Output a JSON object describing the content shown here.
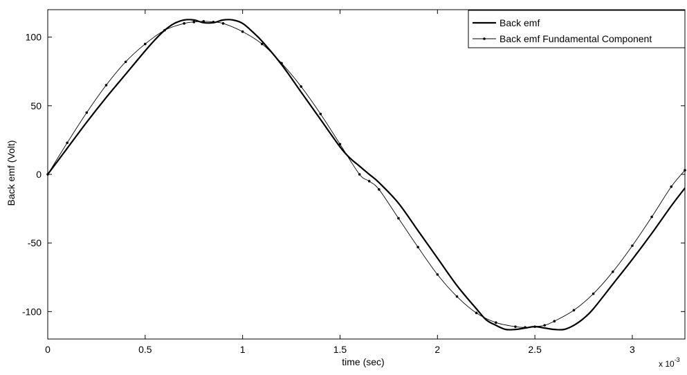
{
  "chart_data": {
    "type": "line",
    "title": "",
    "xlabel": "time (sec)",
    "ylabel": "Back emf (Volt)",
    "x_multiplier_base": "x 10",
    "x_multiplier_exp": "-3",
    "xlim": [
      0,
      3.27
    ],
    "ylim": [
      -120,
      120
    ],
    "xticks": [
      0,
      0.5,
      1,
      1.5,
      2,
      2.5,
      3
    ],
    "xtick_labels": [
      "0",
      "0.5",
      "1",
      "1.5",
      "2",
      "2.5",
      "3"
    ],
    "yticks": [
      -100,
      -50,
      0,
      50,
      100
    ],
    "ytick_labels": [
      "-100",
      "-50",
      "0",
      "50",
      "100"
    ],
    "grid": false,
    "legend_position": "top-right",
    "series": [
      {
        "name": "Back emf",
        "style": "thick-solid",
        "color": "#000000",
        "x": [
          0,
          0.1,
          0.2,
          0.3,
          0.4,
          0.5,
          0.55,
          0.6,
          0.65,
          0.7,
          0.75,
          0.8,
          0.85,
          0.9,
          0.95,
          1.0,
          1.05,
          1.1,
          1.2,
          1.3,
          1.4,
          1.5,
          1.55,
          1.6,
          1.65,
          1.7,
          1.8,
          1.9,
          2.0,
          2.1,
          2.2,
          2.25,
          2.3,
          2.35,
          2.4,
          2.45,
          2.5,
          2.55,
          2.6,
          2.65,
          2.7,
          2.75,
          2.8,
          2.9,
          3.0,
          3.1,
          3.2,
          3.27
        ],
        "y": [
          0,
          19,
          38,
          56,
          73,
          90,
          98,
          105,
          110,
          112.5,
          112.5,
          110.5,
          110.5,
          112.5,
          112.5,
          110,
          104,
          97,
          80,
          60,
          40,
          20,
          12,
          6,
          0,
          -6,
          -21,
          -41,
          -61,
          -81,
          -98,
          -106,
          -110,
          -113,
          -113,
          -112,
          -111,
          -112,
          -113,
          -113,
          -110,
          -105,
          -98,
          -80,
          -62,
          -43,
          -23,
          -10
        ]
      },
      {
        "name": "Back emf Fundamental Component",
        "style": "thin-dotted-markers",
        "color": "#000000",
        "x": [
          0,
          0.1,
          0.2,
          0.3,
          0.4,
          0.5,
          0.6,
          0.7,
          0.75,
          0.8,
          0.85,
          0.9,
          1.0,
          1.1,
          1.2,
          1.3,
          1.4,
          1.5,
          1.6,
          1.65,
          1.7,
          1.8,
          1.9,
          2.0,
          2.1,
          2.2,
          2.3,
          2.4,
          2.45,
          2.5,
          2.55,
          2.6,
          2.7,
          2.8,
          2.9,
          3.0,
          3.1,
          3.2,
          3.27
        ],
        "y": [
          0,
          23,
          45,
          65,
          82,
          95,
          105,
          110,
          111,
          111.5,
          111,
          110,
          104,
          95,
          81,
          64,
          44,
          22,
          0,
          -5,
          -11,
          -32,
          -53,
          -73,
          -89,
          -101,
          -108,
          -111,
          -111.5,
          -111,
          -110,
          -107,
          -99,
          -87,
          -71,
          -52,
          -31,
          -9,
          3
        ]
      }
    ]
  }
}
